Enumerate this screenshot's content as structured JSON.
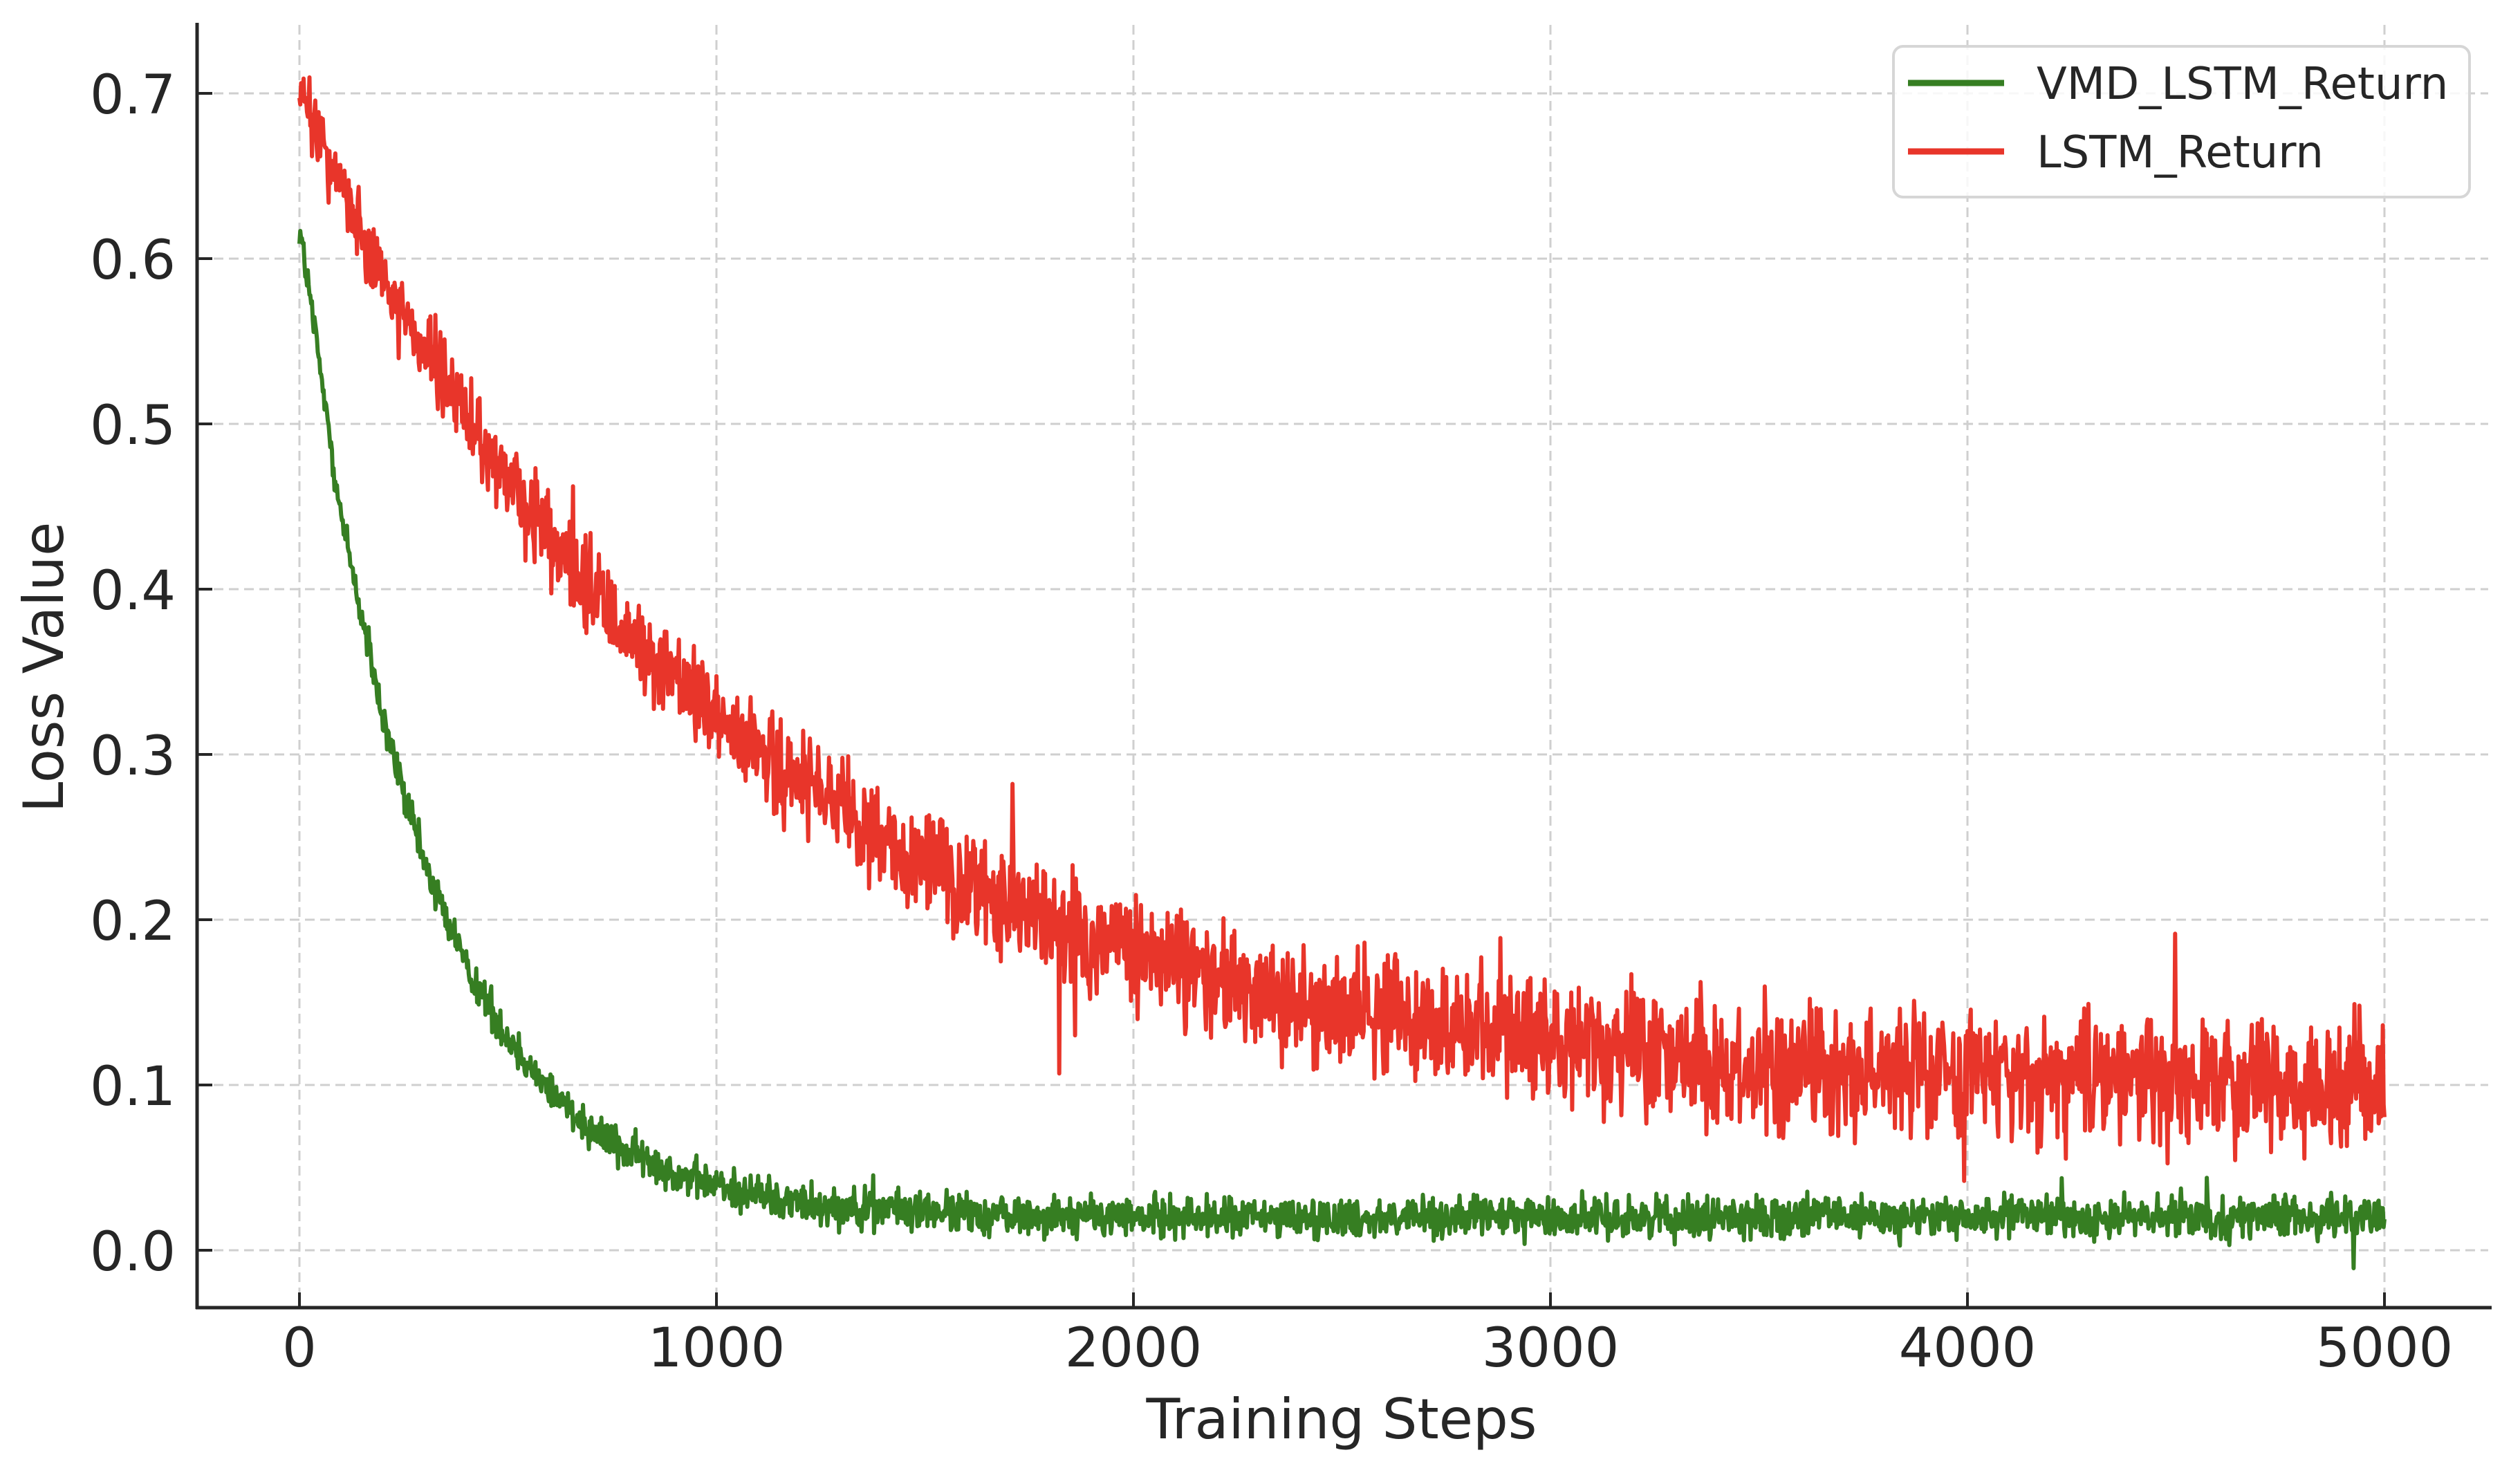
{
  "chart_data": {
    "type": "line",
    "title": "",
    "xlabel": "Training Steps",
    "ylabel": "Loss Value",
    "xlim": [
      -240,
      5200
    ],
    "ylim": [
      -0.035,
      0.745
    ],
    "xticks": [
      0,
      1000,
      2000,
      3000,
      4000,
      5000
    ],
    "xtick_labels": [
      "0",
      "1000",
      "2000",
      "3000",
      "4000",
      "5000"
    ],
    "yticks": [
      0.0,
      0.1,
      0.2,
      0.3,
      0.4,
      0.5,
      0.6,
      0.7
    ],
    "ytick_labels": [
      "0.0",
      "0.1",
      "0.2",
      "0.3",
      "0.4",
      "0.5",
      "0.6",
      "0.7"
    ],
    "grid": true,
    "legend_position": "upper right",
    "x": [
      0,
      100,
      200,
      300,
      400,
      500,
      600,
      700,
      800,
      900,
      1000,
      1200,
      1400,
      1600,
      1800,
      2000,
      2200,
      2400,
      2600,
      2800,
      3000,
      3200,
      3400,
      3600,
      3800,
      4000,
      4200,
      4400,
      4600,
      4800,
      5000
    ],
    "series": [
      {
        "name": "VMD_LSTM_Return",
        "color": "#367e22",
        "noise_amplitude": 0.006,
        "values": [
          0.62,
          0.445,
          0.32,
          0.234,
          0.172,
          0.128,
          0.097,
          0.074,
          0.058,
          0.047,
          0.039,
          0.029,
          0.025,
          0.022,
          0.021,
          0.02,
          0.02,
          0.02,
          0.02,
          0.02,
          0.02,
          0.02,
          0.02,
          0.02,
          0.02,
          0.02,
          0.02,
          0.02,
          0.02,
          0.02,
          0.02
        ]
      },
      {
        "name": "LSTM_Return",
        "color": "#e8352a",
        "noise_amplitude": 0.014,
        "values": [
          0.7,
          0.645,
          0.591,
          0.545,
          0.504,
          0.464,
          0.429,
          0.398,
          0.37,
          0.345,
          0.32,
          0.282,
          0.247,
          0.22,
          0.197,
          0.179,
          0.164,
          0.152,
          0.141,
          0.133,
          0.126,
          0.12,
          0.115,
          0.111,
          0.108,
          0.106,
          0.104,
          0.102,
          0.101,
          0.1,
          0.099
        ]
      }
    ]
  },
  "legend": {
    "items": [
      {
        "label": "VMD_LSTM_Return",
        "color": "#367e22"
      },
      {
        "label": "LSTM_Return",
        "color": "#e8352a"
      }
    ]
  },
  "axes": {
    "xlabel": "Training Steps",
    "ylabel": "Loss Value"
  }
}
